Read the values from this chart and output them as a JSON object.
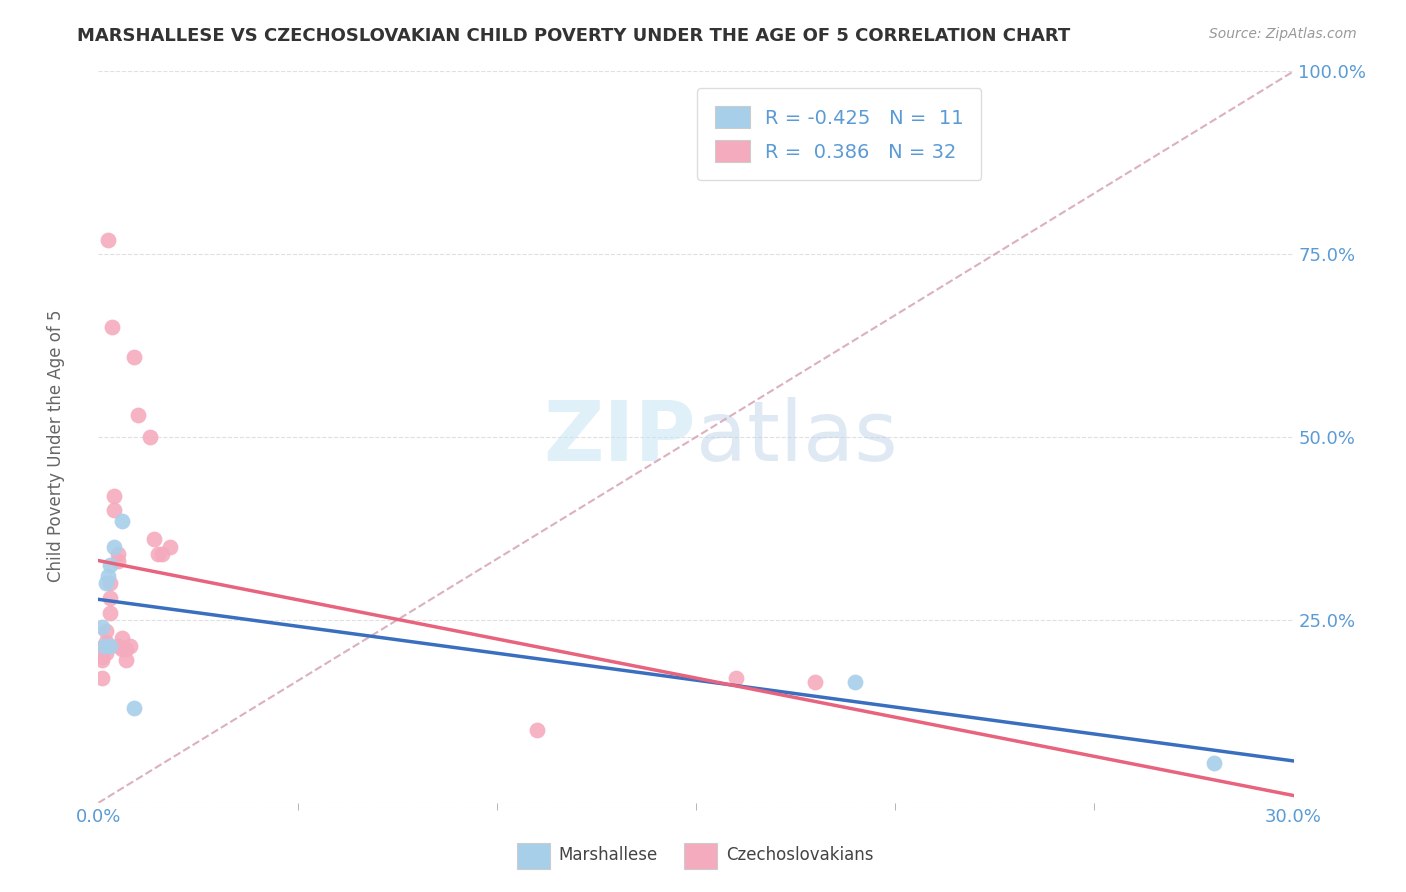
{
  "title": "MARSHALLESE VS CZECHOSLOVAKIAN CHILD POVERTY UNDER THE AGE OF 5 CORRELATION CHART",
  "source": "Source: ZipAtlas.com",
  "ylabel": "Child Poverty Under the Age of 5",
  "xlim": [
    0.0,
    0.3
  ],
  "ylim": [
    0.0,
    1.0
  ],
  "xticks_minor": [
    0.05,
    0.1,
    0.15,
    0.2,
    0.25
  ],
  "yticks": [
    0.0,
    0.25,
    0.5,
    0.75,
    1.0
  ],
  "yticklabels": [
    "",
    "25.0%",
    "50.0%",
    "75.0%",
    "100.0%"
  ],
  "marshallese_x": [
    0.001,
    0.0015,
    0.002,
    0.0025,
    0.003,
    0.003,
    0.004,
    0.006,
    0.009,
    0.19,
    0.28
  ],
  "marshallese_y": [
    0.24,
    0.215,
    0.3,
    0.31,
    0.215,
    0.325,
    0.35,
    0.385,
    0.13,
    0.165,
    0.055
  ],
  "czechoslovakian_x": [
    0.001,
    0.001,
    0.001,
    0.0015,
    0.002,
    0.002,
    0.002,
    0.0025,
    0.003,
    0.003,
    0.003,
    0.0035,
    0.004,
    0.004,
    0.005,
    0.005,
    0.005,
    0.006,
    0.006,
    0.007,
    0.007,
    0.008,
    0.009,
    0.01,
    0.013,
    0.014,
    0.015,
    0.016,
    0.018,
    0.11,
    0.16,
    0.18
  ],
  "czechoslovakian_y": [
    0.2,
    0.195,
    0.17,
    0.215,
    0.22,
    0.235,
    0.205,
    0.77,
    0.3,
    0.28,
    0.26,
    0.65,
    0.42,
    0.4,
    0.33,
    0.34,
    0.215,
    0.225,
    0.21,
    0.21,
    0.195,
    0.215,
    0.61,
    0.53,
    0.5,
    0.36,
    0.34,
    0.34,
    0.35,
    0.1,
    0.17,
    0.165
  ],
  "marshallese_R": -0.425,
  "marshallese_N": 11,
  "czechoslovakian_R": 0.386,
  "czechoslovakian_N": 32,
  "blue_color": "#A8CFEA",
  "pink_color": "#F5ABBE",
  "blue_line_color": "#3A6FBF",
  "pink_line_color": "#E8637D",
  "ref_line_color": "#D8A8B8",
  "grid_color": "#E0E0E0",
  "tick_color": "#5B9BD5",
  "background_color": "#FFFFFF"
}
